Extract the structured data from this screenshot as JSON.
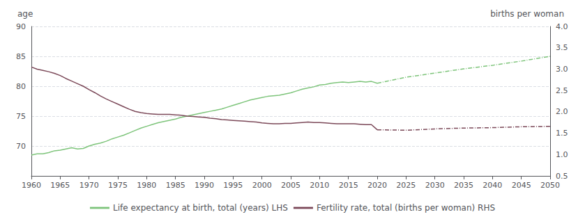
{
  "chart_data": {
    "type": "line",
    "legend": "bottom",
    "grid": true,
    "xlim": [
      1960,
      2050
    ],
    "xticks": [
      1960,
      1965,
      1970,
      1975,
      1980,
      1985,
      1990,
      1995,
      2000,
      2005,
      2010,
      2015,
      2020,
      2025,
      2030,
      2035,
      2040,
      2045,
      2050
    ],
    "y_label": "age",
    "ylim": [
      65,
      90
    ],
    "yticks": [
      70,
      75,
      80,
      85,
      90
    ],
    "y2_label": "births per woman",
    "y2lim": [
      0.5,
      4.0
    ],
    "y2ticks": [
      0.5,
      {
        "value": 1.0,
        "label": "1.0"
      },
      1.5,
      {
        "value": 2.0,
        "label": "2.0"
      },
      2.5,
      {
        "value": 3.0,
        "label": "3.0"
      },
      3.5,
      {
        "value": 4.0,
        "label": "4.0"
      }
    ],
    "series": [
      {
        "name": "Life expectancy at birth, total (years) LHS",
        "color": "#7DC47A",
        "axis": "y",
        "line_style": "solid",
        "x": [
          1960,
          1961,
          1962,
          1963,
          1964,
          1965,
          1966,
          1967,
          1968,
          1969,
          1970,
          1971,
          1972,
          1973,
          1974,
          1975,
          1976,
          1977,
          1978,
          1979,
          1980,
          1981,
          1982,
          1983,
          1984,
          1985,
          1986,
          1987,
          1988,
          1989,
          1990,
          1991,
          1992,
          1993,
          1994,
          1995,
          1996,
          1997,
          1998,
          1999,
          2000,
          2001,
          2002,
          2003,
          2004,
          2005,
          2006,
          2007,
          2008,
          2009,
          2010,
          2011,
          2012,
          2013,
          2014,
          2015,
          2016,
          2017,
          2018,
          2019,
          2020
        ],
        "values": [
          68.5,
          68.7,
          68.7,
          68.9,
          69.2,
          69.3,
          69.5,
          69.7,
          69.5,
          69.6,
          70.0,
          70.3,
          70.5,
          70.8,
          71.2,
          71.5,
          71.8,
          72.2,
          72.6,
          73.0,
          73.3,
          73.6,
          73.9,
          74.1,
          74.3,
          74.5,
          74.8,
          75.0,
          75.2,
          75.4,
          75.6,
          75.8,
          76.0,
          76.2,
          76.5,
          76.8,
          77.1,
          77.4,
          77.7,
          77.9,
          78.1,
          78.3,
          78.4,
          78.5,
          78.7,
          78.9,
          79.2,
          79.5,
          79.7,
          79.9,
          80.2,
          80.3,
          80.5,
          80.6,
          80.7,
          80.6,
          80.7,
          80.8,
          80.7,
          80.8,
          80.5
        ]
      },
      {
        "name": "Life expectancy at birth, total (years) LHS",
        "color": "#7DC47A",
        "axis": "y",
        "line_style": "dashdot",
        "x": [
          2020,
          2025,
          2030,
          2035,
          2040,
          2045,
          2050
        ],
        "values": [
          80.5,
          81.5,
          82.2,
          82.9,
          83.5,
          84.2,
          85.0
        ]
      },
      {
        "name": "Fertility rate, total (births per woman) RHS",
        "color": "#7B4858",
        "axis": "y2",
        "line_style": "solid",
        "x": [
          1960,
          1961,
          1962,
          1963,
          1964,
          1965,
          1966,
          1967,
          1968,
          1969,
          1970,
          1971,
          1972,
          1973,
          1974,
          1975,
          1976,
          1977,
          1978,
          1979,
          1980,
          1981,
          1982,
          1983,
          1984,
          1985,
          1986,
          1987,
          1988,
          1989,
          1990,
          1991,
          1992,
          1993,
          1994,
          1995,
          1996,
          1997,
          1998,
          1999,
          2000,
          2001,
          2002,
          2003,
          2004,
          2005,
          2006,
          2007,
          2008,
          2009,
          2010,
          2011,
          2012,
          2013,
          2014,
          2015,
          2016,
          2017,
          2018,
          2019,
          2020
        ],
        "values": [
          3.05,
          3.0,
          2.97,
          2.94,
          2.9,
          2.85,
          2.78,
          2.72,
          2.66,
          2.6,
          2.52,
          2.45,
          2.37,
          2.3,
          2.24,
          2.18,
          2.12,
          2.06,
          2.01,
          1.98,
          1.96,
          1.95,
          1.94,
          1.94,
          1.94,
          1.93,
          1.92,
          1.9,
          1.89,
          1.88,
          1.87,
          1.85,
          1.84,
          1.82,
          1.81,
          1.8,
          1.79,
          1.78,
          1.77,
          1.76,
          1.74,
          1.73,
          1.72,
          1.72,
          1.73,
          1.73,
          1.74,
          1.75,
          1.76,
          1.75,
          1.75,
          1.74,
          1.73,
          1.72,
          1.72,
          1.72,
          1.72,
          1.71,
          1.7,
          1.7,
          1.58
        ]
      },
      {
        "name": "Fertility rate, total (births per woman) RHS",
        "color": "#7B4858",
        "axis": "y2",
        "line_style": "dashdot",
        "x": [
          2020,
          2025,
          2030,
          2035,
          2040,
          2045,
          2050
        ],
        "values": [
          1.58,
          1.57,
          1.6,
          1.62,
          1.63,
          1.65,
          1.66
        ]
      }
    ]
  }
}
